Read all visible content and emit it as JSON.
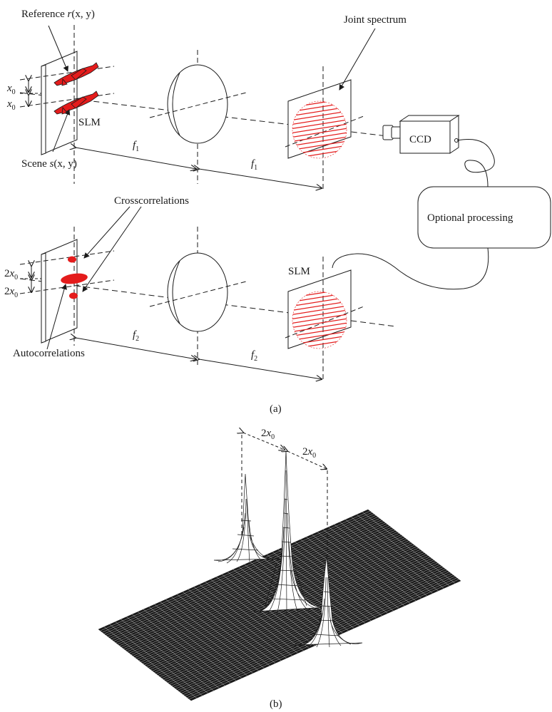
{
  "colors": {
    "ink": "#1a1a1a",
    "accent": "#e41c1c",
    "background": "#ffffff"
  },
  "panel_a": {
    "label": "(a)",
    "top": {
      "reference_label": "Reference",
      "reference_func": "r",
      "reference_args": "(x, y)",
      "scene_label": "Scene",
      "scene_func": "s",
      "scene_args": "(x, y)",
      "slm": "SLM",
      "x0_var": "x",
      "x0_sub": "0",
      "focal_var": "f",
      "focal_sub": "1",
      "joint_spectrum": "Joint spectrum",
      "ccd": "CCD",
      "optional_processing": "Optional processing"
    },
    "bottom": {
      "crosscorrelations": "Crosscorrelations",
      "autocorrelations": "Autocorrelations",
      "slm": "SLM",
      "offset_num": "2",
      "offset_var": "x",
      "offset_sub": "0",
      "focal_var": "f",
      "focal_sub": "2"
    }
  },
  "panel_b": {
    "label": "(b)",
    "offset_num": "2",
    "offset_var": "x",
    "offset_sub": "0"
  }
}
